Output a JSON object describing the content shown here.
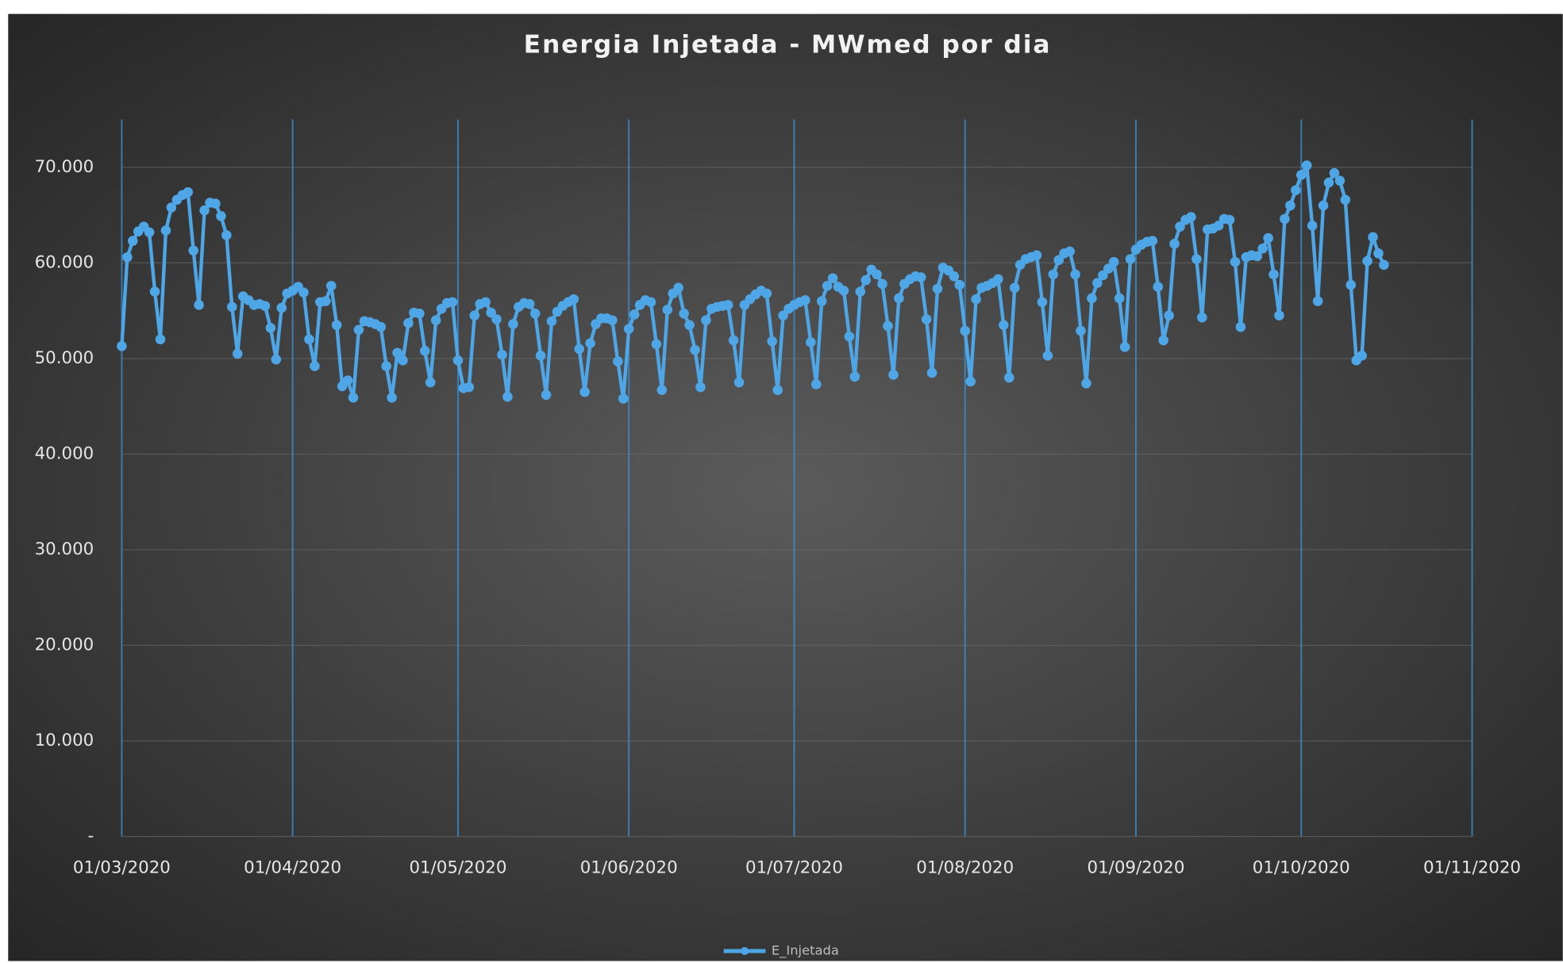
{
  "chart_data": {
    "type": "line",
    "title": "Energia Injetada - MWmed por dia",
    "xlim": [
      "2020-03-01",
      "2020-11-01"
    ],
    "xticks": [
      {
        "value": "2020-03-01",
        "label": "01/03/2020"
      },
      {
        "value": "2020-04-01",
        "label": "01/04/2020"
      },
      {
        "value": "2020-05-01",
        "label": "01/05/2020"
      },
      {
        "value": "2020-06-01",
        "label": "01/06/2020"
      },
      {
        "value": "2020-07-01",
        "label": "01/07/2020"
      },
      {
        "value": "2020-08-01",
        "label": "01/08/2020"
      },
      {
        "value": "2020-09-01",
        "label": "01/09/2020"
      },
      {
        "value": "2020-10-01",
        "label": "01/10/2020"
      },
      {
        "value": "2020-11-01",
        "label": "01/11/2020"
      }
    ],
    "ylim": [
      0,
      75000
    ],
    "yticks": [
      {
        "value": 0,
        "label": "-"
      },
      {
        "value": 10000,
        "label": "10.000"
      },
      {
        "value": 20000,
        "label": "20.000"
      },
      {
        "value": 30000,
        "label": "30.000"
      },
      {
        "value": 40000,
        "label": "40.000"
      },
      {
        "value": 50000,
        "label": "50.000"
      },
      {
        "value": 60000,
        "label": "60.000"
      },
      {
        "value": 70000,
        "label": "70.000"
      }
    ],
    "grid": true,
    "legend": "bottom",
    "x": [
      "2020-03-01",
      "2020-03-02",
      "2020-03-03",
      "2020-03-04",
      "2020-03-05",
      "2020-03-06",
      "2020-03-07",
      "2020-03-08",
      "2020-03-09",
      "2020-03-10",
      "2020-03-11",
      "2020-03-12",
      "2020-03-13",
      "2020-03-14",
      "2020-03-15",
      "2020-03-16",
      "2020-03-17",
      "2020-03-18",
      "2020-03-19",
      "2020-03-20",
      "2020-03-21",
      "2020-03-22",
      "2020-03-23",
      "2020-03-24",
      "2020-03-25",
      "2020-03-26",
      "2020-03-27",
      "2020-03-28",
      "2020-03-29",
      "2020-03-30",
      "2020-03-31",
      "2020-04-01",
      "2020-04-02",
      "2020-04-03",
      "2020-04-04",
      "2020-04-05",
      "2020-04-06",
      "2020-04-07",
      "2020-04-08",
      "2020-04-09",
      "2020-04-10",
      "2020-04-11",
      "2020-04-12",
      "2020-04-13",
      "2020-04-14",
      "2020-04-15",
      "2020-04-16",
      "2020-04-17",
      "2020-04-18",
      "2020-04-19",
      "2020-04-20",
      "2020-04-21",
      "2020-04-22",
      "2020-04-23",
      "2020-04-24",
      "2020-04-25",
      "2020-04-26",
      "2020-04-27",
      "2020-04-28",
      "2020-04-29",
      "2020-04-30",
      "2020-05-01",
      "2020-05-02",
      "2020-05-03",
      "2020-05-04",
      "2020-05-05",
      "2020-05-06",
      "2020-05-07",
      "2020-05-08",
      "2020-05-09",
      "2020-05-10",
      "2020-05-11",
      "2020-05-12",
      "2020-05-13",
      "2020-05-14",
      "2020-05-15",
      "2020-05-16",
      "2020-05-17",
      "2020-05-18",
      "2020-05-19",
      "2020-05-20",
      "2020-05-21",
      "2020-05-22",
      "2020-05-23",
      "2020-05-24",
      "2020-05-25",
      "2020-05-26",
      "2020-05-27",
      "2020-05-28",
      "2020-05-29",
      "2020-05-30",
      "2020-05-31",
      "2020-06-01",
      "2020-06-02",
      "2020-06-03",
      "2020-06-04",
      "2020-06-05",
      "2020-06-06",
      "2020-06-07",
      "2020-06-08",
      "2020-06-09",
      "2020-06-10",
      "2020-06-11",
      "2020-06-12",
      "2020-06-13",
      "2020-06-14",
      "2020-06-15",
      "2020-06-16",
      "2020-06-17",
      "2020-06-18",
      "2020-06-19",
      "2020-06-20",
      "2020-06-21",
      "2020-06-22",
      "2020-06-23",
      "2020-06-24",
      "2020-06-25",
      "2020-06-26",
      "2020-06-27",
      "2020-06-28",
      "2020-06-29",
      "2020-06-30",
      "2020-07-01",
      "2020-07-02",
      "2020-07-03",
      "2020-07-04",
      "2020-07-05",
      "2020-07-06",
      "2020-07-07",
      "2020-07-08",
      "2020-07-09",
      "2020-07-10",
      "2020-07-11",
      "2020-07-12",
      "2020-07-13",
      "2020-07-14",
      "2020-07-15",
      "2020-07-16",
      "2020-07-17",
      "2020-07-18",
      "2020-07-19",
      "2020-07-20",
      "2020-07-21",
      "2020-07-22",
      "2020-07-23",
      "2020-07-24",
      "2020-07-25",
      "2020-07-26",
      "2020-07-27",
      "2020-07-28",
      "2020-07-29",
      "2020-07-30",
      "2020-07-31",
      "2020-08-01",
      "2020-08-02",
      "2020-08-03",
      "2020-08-04",
      "2020-08-05",
      "2020-08-06",
      "2020-08-07",
      "2020-08-08",
      "2020-08-09",
      "2020-08-10",
      "2020-08-11",
      "2020-08-12",
      "2020-08-13",
      "2020-08-14",
      "2020-08-15",
      "2020-08-16",
      "2020-08-17",
      "2020-08-18",
      "2020-08-19",
      "2020-08-20",
      "2020-08-21",
      "2020-08-22",
      "2020-08-23",
      "2020-08-24",
      "2020-08-25",
      "2020-08-26",
      "2020-08-27",
      "2020-08-28",
      "2020-08-29",
      "2020-08-30",
      "2020-08-31",
      "2020-09-01",
      "2020-09-02",
      "2020-09-03",
      "2020-09-04",
      "2020-09-05",
      "2020-09-06",
      "2020-09-07",
      "2020-09-08",
      "2020-09-09",
      "2020-09-10",
      "2020-09-11",
      "2020-09-12",
      "2020-09-13",
      "2020-09-14",
      "2020-09-15",
      "2020-09-16",
      "2020-09-17",
      "2020-09-18",
      "2020-09-19",
      "2020-09-20",
      "2020-09-21",
      "2020-09-22",
      "2020-09-23",
      "2020-09-24",
      "2020-09-25",
      "2020-09-26",
      "2020-09-27",
      "2020-09-28",
      "2020-09-29",
      "2020-09-30",
      "2020-10-01",
      "2020-10-02",
      "2020-10-03",
      "2020-10-04",
      "2020-10-05",
      "2020-10-06",
      "2020-10-07",
      "2020-10-08",
      "2020-10-09",
      "2020-10-10",
      "2020-10-11",
      "2020-10-12",
      "2020-10-13",
      "2020-10-14",
      "2020-10-15",
      "2020-10-16"
    ],
    "series": [
      {
        "name": "E_Injetada",
        "color": "#4ea6e6",
        "values": [
          51300,
          60600,
          62300,
          63300,
          63800,
          63200,
          57000,
          52000,
          63400,
          65800,
          66600,
          67100,
          67400,
          61300,
          55600,
          65500,
          66300,
          66200,
          64900,
          62900,
          55400,
          50500,
          56500,
          56100,
          55600,
          55700,
          55500,
          53200,
          49900,
          55300,
          56800,
          57100,
          57500,
          56900,
          52000,
          49200,
          55900,
          56000,
          57600,
          53500,
          47100,
          47700,
          45900,
          53000,
          53900,
          53800,
          53600,
          53300,
          49200,
          45900,
          50600,
          49800,
          53700,
          54800,
          54700,
          50800,
          47500,
          54000,
          55200,
          55800,
          55900,
          49800,
          46900,
          47000,
          54500,
          55700,
          55900,
          54800,
          54100,
          50400,
          46000,
          53600,
          55400,
          55800,
          55700,
          54700,
          50300,
          46200,
          53900,
          54900,
          55500,
          55900,
          56200,
          51000,
          46500,
          51600,
          53600,
          54200,
          54200,
          54000,
          49700,
          45800,
          53100,
          54600,
          55600,
          56100,
          55900,
          51500,
          46700,
          55100,
          56800,
          57400,
          54700,
          53500,
          50900,
          47000,
          54000,
          55200,
          55400,
          55500,
          55600,
          51900,
          47500,
          55600,
          56200,
          56700,
          57100,
          56800,
          51800,
          46700,
          54500,
          55200,
          55600,
          55900,
          56100,
          51700,
          47300,
          56000,
          57600,
          58400,
          57500,
          57100,
          52300,
          48100,
          57000,
          58200,
          59300,
          58800,
          57800,
          53400,
          48300,
          56300,
          57800,
          58300,
          58600,
          58500,
          54100,
          48500,
          57300,
          59500,
          59200,
          58600,
          57700,
          52900,
          47600,
          56200,
          57400,
          57600,
          57900,
          58300,
          53500,
          48000,
          57400,
          59800,
          60400,
          60600,
          60800,
          55900,
          50300,
          58800,
          60300,
          61000,
          61200,
          58800,
          52900,
          47400,
          56300,
          57900,
          58700,
          59400,
          60100,
          56300,
          51200,
          60400,
          61400,
          61900,
          62200,
          62300,
          57500,
          51900,
          54500,
          62000,
          63800,
          64500,
          64800,
          60400,
          54300,
          63500,
          63600,
          63900,
          64600,
          64500,
          60100,
          53300,
          60600,
          60800,
          60700,
          61500,
          62600,
          58800,
          54500,
          64600,
          66000,
          67600,
          69200,
          70200,
          63900,
          56000,
          66000,
          68400,
          69400,
          68600,
          66600,
          57700,
          49800,
          50300,
          60200,
          62700,
          61000,
          59800
        ]
      }
    ]
  }
}
